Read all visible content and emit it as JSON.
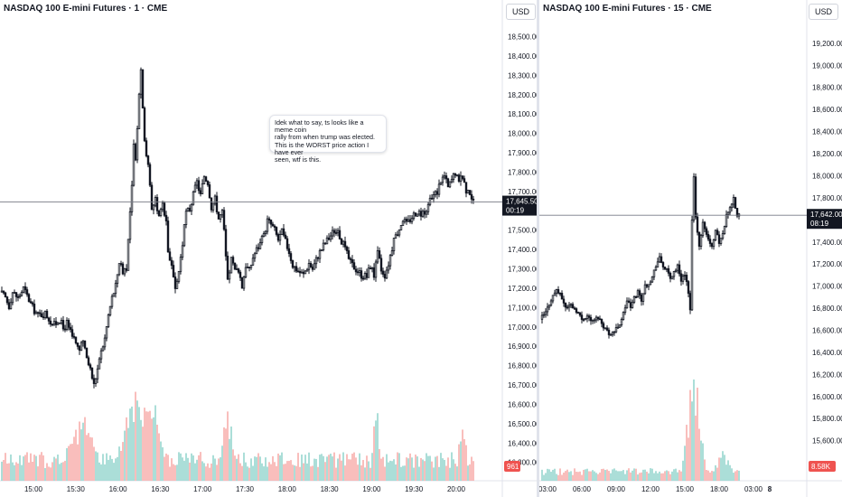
{
  "left_chart": {
    "title": "NASDAQ 100 E-mini Futures · 1 · CME",
    "currency": "USD",
    "price_label": "17,645.50",
    "countdown": "00:19",
    "volume_label": "961",
    "note_text": "Idek what to say, ts looks like a meme coin\nrally from when trump was elected.\nThis is the WORST price action I have ever\nseen, wtf is this."
  },
  "right_chart": {
    "title": "NASDAQ 100 E-mini Futures · 15 · CME",
    "currency": "USD",
    "price_label": "17,642.00",
    "countdown": "08:19",
    "volume_label": "8.58K",
    "axis_extra_label": "8"
  },
  "colors": {
    "up": "#26a69a",
    "down": "#ef5350",
    "candle": "#131722",
    "vol_up": "#8fd3cb",
    "vol_down": "#f7a8a6",
    "price_tag": "#131722"
  },
  "chart_data": [
    {
      "type": "candlestick",
      "title": "NASDAQ 100 E-mini Futures · 1 · CME",
      "x_ticks": [
        "15:00",
        "15:30",
        "16:00",
        "16:30",
        "17:00",
        "17:30",
        "18:00",
        "18:30",
        "19:00",
        "19:30",
        "20:00"
      ],
      "y_ticks": [
        "18,500.00",
        "18,400.00",
        "18,300.00",
        "18,200.00",
        "18,100.00",
        "18,000.00",
        "17,900.00",
        "17,800.00",
        "17,700.00",
        "17,600.00",
        "17,500.00",
        "17,400.00",
        "17,300.00",
        "17,200.00",
        "17,100.00",
        "17,000.00",
        "16,900.00",
        "16,800.00",
        "16,700.00",
        "16,600.00",
        "16,500.00",
        "16,400.00",
        "16,300.00"
      ],
      "ylim": [
        16280,
        18540
      ],
      "last_price": 17645.5,
      "close_path": [
        [
          0,
          17180
        ],
        [
          6,
          17150
        ],
        [
          10,
          17110
        ],
        [
          14,
          17180
        ],
        [
          20,
          17150
        ],
        [
          26,
          17200
        ],
        [
          30,
          17160
        ],
        [
          36,
          17100
        ],
        [
          42,
          17060
        ],
        [
          50,
          17070
        ],
        [
          56,
          17030
        ],
        [
          60,
          17010
        ],
        [
          66,
          17040
        ],
        [
          70,
          16990
        ],
        [
          74,
          17020
        ],
        [
          80,
          16970
        ],
        [
          84,
          16910
        ],
        [
          88,
          16880
        ],
        [
          92,
          16920
        ],
        [
          96,
          16840
        ],
        [
          100,
          16780
        ],
        [
          104,
          16700
        ],
        [
          108,
          16780
        ],
        [
          112,
          16870
        ],
        [
          116,
          16940
        ],
        [
          120,
          17060
        ],
        [
          124,
          17150
        ],
        [
          128,
          17210
        ],
        [
          132,
          17340
        ],
        [
          136,
          17290
        ],
        [
          140,
          17310
        ],
        [
          144,
          17590
        ],
        [
          146,
          17720
        ],
        [
          148,
          17930
        ],
        [
          150,
          17860
        ],
        [
          152,
          18040
        ],
        [
          154,
          18220
        ],
        [
          156,
          18330
        ],
        [
          158,
          18150
        ],
        [
          160,
          17980
        ],
        [
          162,
          17870
        ],
        [
          164,
          17830
        ],
        [
          166,
          17750
        ],
        [
          168,
          17620
        ],
        [
          172,
          17650
        ],
        [
          176,
          17560
        ],
        [
          180,
          17630
        ],
        [
          184,
          17560
        ],
        [
          186,
          17400
        ],
        [
          190,
          17300
        ],
        [
          194,
          17180
        ],
        [
          198,
          17290
        ],
        [
          202,
          17430
        ],
        [
          206,
          17590
        ],
        [
          210,
          17610
        ],
        [
          214,
          17680
        ],
        [
          218,
          17750
        ],
        [
          222,
          17680
        ],
        [
          226,
          17780
        ],
        [
          230,
          17750
        ],
        [
          234,
          17620
        ],
        [
          238,
          17660
        ],
        [
          242,
          17560
        ],
        [
          246,
          17590
        ],
        [
          248,
          17490
        ],
        [
          252,
          17230
        ],
        [
          256,
          17350
        ],
        [
          260,
          17290
        ],
        [
          264,
          17300
        ],
        [
          268,
          17210
        ],
        [
          272,
          17320
        ],
        [
          276,
          17290
        ],
        [
          280,
          17360
        ],
        [
          284,
          17400
        ],
        [
          288,
          17430
        ],
        [
          292,
          17470
        ],
        [
          296,
          17550
        ],
        [
          300,
          17530
        ],
        [
          304,
          17500
        ],
        [
          308,
          17450
        ],
        [
          312,
          17490
        ],
        [
          316,
          17440
        ],
        [
          320,
          17390
        ],
        [
          324,
          17320
        ],
        [
          330,
          17290
        ],
        [
          336,
          17270
        ],
        [
          342,
          17330
        ],
        [
          346,
          17300
        ],
        [
          352,
          17370
        ],
        [
          358,
          17420
        ],
        [
          364,
          17460
        ],
        [
          370,
          17500
        ],
        [
          376,
          17470
        ],
        [
          382,
          17400
        ],
        [
          388,
          17330
        ],
        [
          394,
          17300
        ],
        [
          400,
          17270
        ],
        [
          406,
          17260
        ],
        [
          410,
          17320
        ],
        [
          414,
          17270
        ],
        [
          418,
          17380
        ],
        [
          422,
          17300
        ],
        [
          426,
          17270
        ],
        [
          430,
          17330
        ],
        [
          434,
          17410
        ],
        [
          438,
          17470
        ],
        [
          442,
          17510
        ],
        [
          446,
          17560
        ],
        [
          450,
          17530
        ],
        [
          456,
          17570
        ],
        [
          462,
          17600
        ],
        [
          468,
          17580
        ],
        [
          474,
          17630
        ],
        [
          480,
          17680
        ],
        [
          484,
          17700
        ],
        [
          488,
          17760
        ],
        [
          492,
          17780
        ],
        [
          496,
          17720
        ],
        [
          500,
          17760
        ],
        [
          504,
          17800
        ],
        [
          508,
          17740
        ],
        [
          512,
          17780
        ],
        [
          516,
          17710
        ],
        [
          520,
          17700
        ],
        [
          522,
          17645
        ]
      ]
    },
    {
      "type": "candlestick",
      "title": "NASDAQ 100 E-mini Futures · 15 · CME",
      "x_ticks": [
        "03:00",
        "06:00",
        "09:00",
        "12:00",
        "15:00",
        "18:00",
        "03:00"
      ],
      "y_ticks": [
        "19,200.00",
        "19,000.00",
        "18,800.00",
        "18,600.00",
        "18,400.00",
        "18,200.00",
        "18,000.00",
        "17,800.00",
        "17,600.00",
        "17,400.00",
        "17,200.00",
        "17,000.00",
        "16,800.00",
        "16,600.00",
        "16,400.00",
        "16,200.00",
        "16,000.00",
        "15,800.00",
        "15,600.00"
      ],
      "ylim": [
        15540,
        19330
      ],
      "last_price": 17642,
      "close_path": [
        [
          0,
          16700
        ],
        [
          6,
          16760
        ],
        [
          12,
          16880
        ],
        [
          18,
          16970
        ],
        [
          24,
          16890
        ],
        [
          28,
          16810
        ],
        [
          34,
          16830
        ],
        [
          40,
          16780
        ],
        [
          46,
          16700
        ],
        [
          52,
          16730
        ],
        [
          58,
          16680
        ],
        [
          64,
          16720
        ],
        [
          70,
          16640
        ],
        [
          76,
          16570
        ],
        [
          82,
          16590
        ],
        [
          88,
          16660
        ],
        [
          92,
          16750
        ],
        [
          96,
          16870
        ],
        [
          100,
          16810
        ],
        [
          104,
          16890
        ],
        [
          108,
          16950
        ],
        [
          112,
          16880
        ],
        [
          116,
          17000
        ],
        [
          120,
          17030
        ],
        [
          124,
          17080
        ],
        [
          128,
          17190
        ],
        [
          132,
          17250
        ],
        [
          136,
          17180
        ],
        [
          140,
          17140
        ],
        [
          144,
          17070
        ],
        [
          148,
          17130
        ],
        [
          152,
          17180
        ],
        [
          156,
          17060
        ],
        [
          160,
          17120
        ],
        [
          164,
          16950
        ],
        [
          166,
          16800
        ],
        [
          168,
          17600
        ],
        [
          170,
          18000
        ],
        [
          172,
          17640
        ],
        [
          174,
          17500
        ],
        [
          176,
          17380
        ],
        [
          178,
          17470
        ],
        [
          180,
          17560
        ],
        [
          182,
          17520
        ],
        [
          186,
          17430
        ],
        [
          190,
          17360
        ],
        [
          194,
          17490
        ],
        [
          198,
          17400
        ],
        [
          202,
          17490
        ],
        [
          206,
          17630
        ],
        [
          210,
          17720
        ],
        [
          214,
          17800
        ],
        [
          218,
          17642
        ]
      ]
    }
  ]
}
